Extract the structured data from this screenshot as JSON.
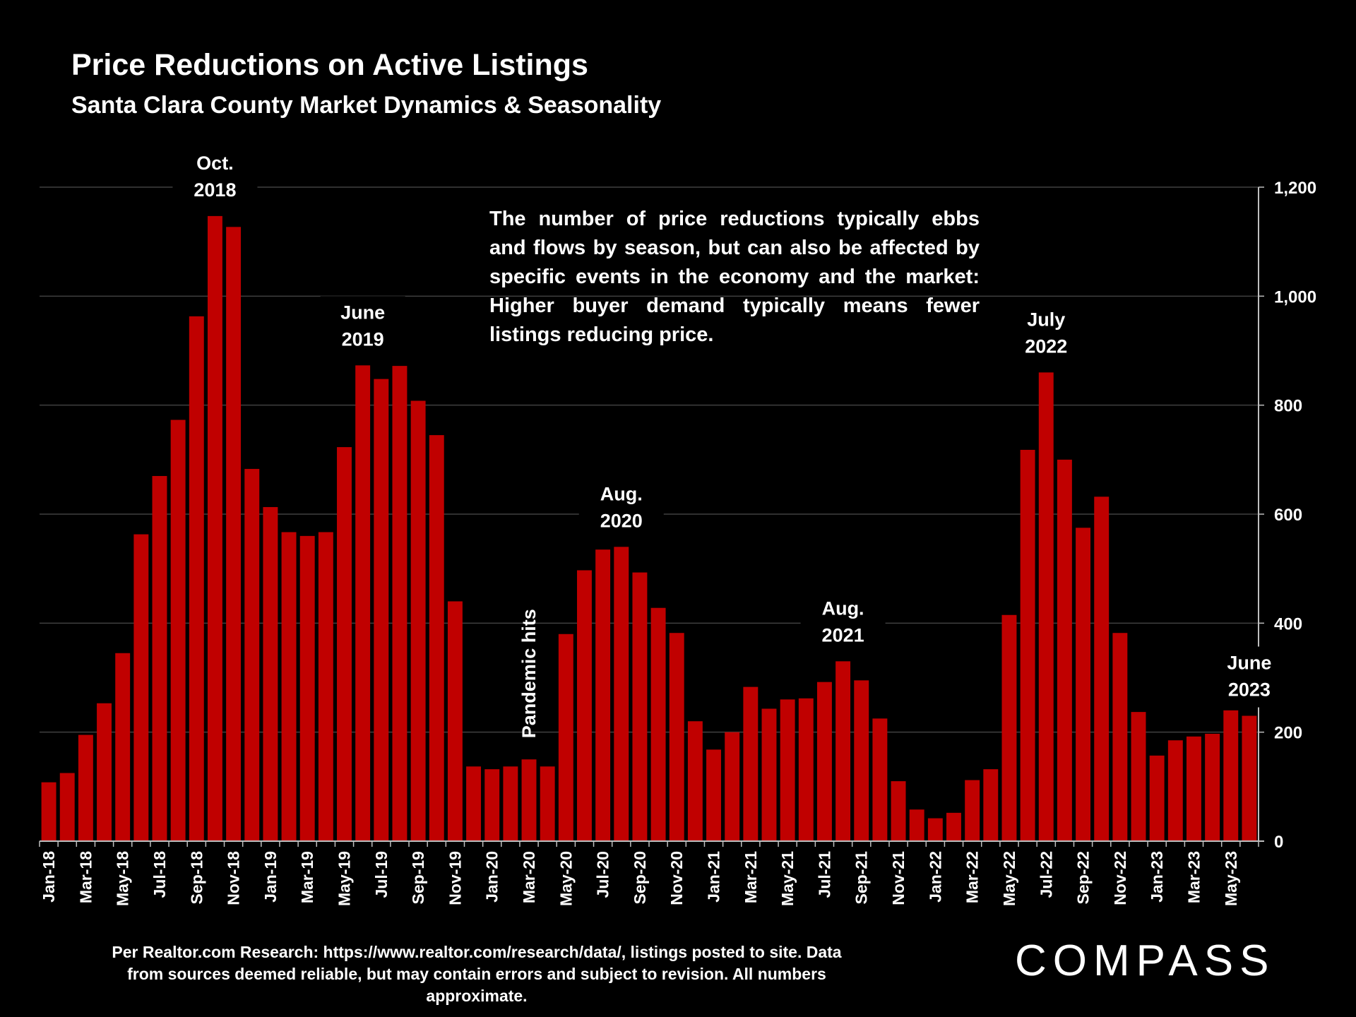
{
  "title": "Price Reductions on Active Listings",
  "subtitle": "Santa Clara County Market Dynamics & Seasonality",
  "note": "The number of price reductions typically ebbs and flows by season, but can also be affected by specific events in the economy and the market: Higher buyer demand typically means fewer listings reducing price.",
  "source": "Per Realtor.com Research:  https://www.realtor.com/research/data/, listings posted to site. Data from sources deemed reliable, but may contain errors and subject to revision. All numbers approximate.",
  "logo": "COMPASS",
  "colors": {
    "bar": "#c00000",
    "grid": "#404040",
    "background": "#000000"
  },
  "chart_data": {
    "type": "bar",
    "title": "Price Reductions on Active Listings",
    "ylim": [
      0,
      1200
    ],
    "yticks": [
      0,
      200,
      400,
      600,
      800,
      1000,
      1200
    ],
    "ytick_labels": [
      "0",
      "200",
      "400",
      "600",
      "800",
      "1,000",
      "1,200"
    ],
    "y_axis_side": "right",
    "grid": true,
    "categories": [
      "Jan-18",
      "Feb-18",
      "Mar-18",
      "Apr-18",
      "May-18",
      "Jun-18",
      "Jul-18",
      "Aug-18",
      "Sep-18",
      "Oct-18",
      "Nov-18",
      "Dec-18",
      "Jan-19",
      "Feb-19",
      "Mar-19",
      "Apr-19",
      "May-19",
      "Jun-19",
      "Jul-19",
      "Aug-19",
      "Sep-19",
      "Oct-19",
      "Nov-19",
      "Dec-19",
      "Jan-20",
      "Feb-20",
      "Mar-20",
      "Apr-20",
      "May-20",
      "Jun-20",
      "Jul-20",
      "Aug-20",
      "Sep-20",
      "Oct-20",
      "Nov-20",
      "Dec-20",
      "Jan-21",
      "Feb-21",
      "Mar-21",
      "Apr-21",
      "May-21",
      "Jun-21",
      "Jul-21",
      "Aug-21",
      "Sep-21",
      "Oct-21",
      "Nov-21",
      "Dec-21",
      "Jan-22",
      "Feb-22",
      "Mar-22",
      "Apr-22",
      "May-22",
      "Jun-22",
      "Jul-22",
      "Aug-22",
      "Sep-22",
      "Oct-22",
      "Nov-22",
      "Dec-22",
      "Jan-23",
      "Feb-23",
      "Mar-23",
      "Apr-23",
      "May-23",
      "Jun-23"
    ],
    "x_tick_labels": [
      "Jan-18",
      "Mar-18",
      "May-18",
      "Jul-18",
      "Sep-18",
      "Nov-18",
      "Jan-19",
      "Mar-19",
      "May-19",
      "Jul-19",
      "Sep-19",
      "Nov-19",
      "Jan-20",
      "Mar-20",
      "May-20",
      "Jul-20",
      "Sep-20",
      "Nov-20",
      "Jan-21",
      "Mar-21",
      "May-21",
      "Jul-21",
      "Sep-21",
      "Nov-21",
      "Jan-22",
      "Mar-22",
      "May-22",
      "Jul-22",
      "Sep-22",
      "Nov-22",
      "Jan-23",
      "Mar-23",
      "May-23"
    ],
    "values": [
      108,
      125,
      195,
      253,
      345,
      563,
      670,
      773,
      963,
      1147,
      1127,
      683,
      613,
      567,
      560,
      567,
      723,
      873,
      848,
      872,
      808,
      745,
      440,
      137,
      132,
      137,
      150,
      137,
      380,
      497,
      535,
      540,
      493,
      428,
      382,
      220,
      168,
      200,
      283,
      243,
      260,
      262,
      292,
      330,
      295,
      225,
      110,
      58,
      42,
      52,
      112,
      132,
      415,
      718,
      860,
      700,
      575,
      632,
      382,
      237,
      157,
      185,
      192,
      197,
      240,
      230
    ],
    "annotations": [
      {
        "lines": [
          "Oct.",
          "2018"
        ],
        "category": "Oct-18"
      },
      {
        "lines": [
          "June",
          "2019"
        ],
        "category": "Jun-19"
      },
      {
        "lines": [
          "Aug.",
          "2020"
        ],
        "category": "Aug-20"
      },
      {
        "lines": [
          "Aug.",
          "2021"
        ],
        "category": "Aug-21"
      },
      {
        "lines": [
          "July",
          "2022"
        ],
        "category": "Jul-22"
      },
      {
        "lines": [
          "June",
          "2023"
        ],
        "category": "Jun-23"
      },
      {
        "lines": [
          "Pandemic hits"
        ],
        "category": "Mar-20",
        "orientation": "vertical"
      }
    ]
  }
}
